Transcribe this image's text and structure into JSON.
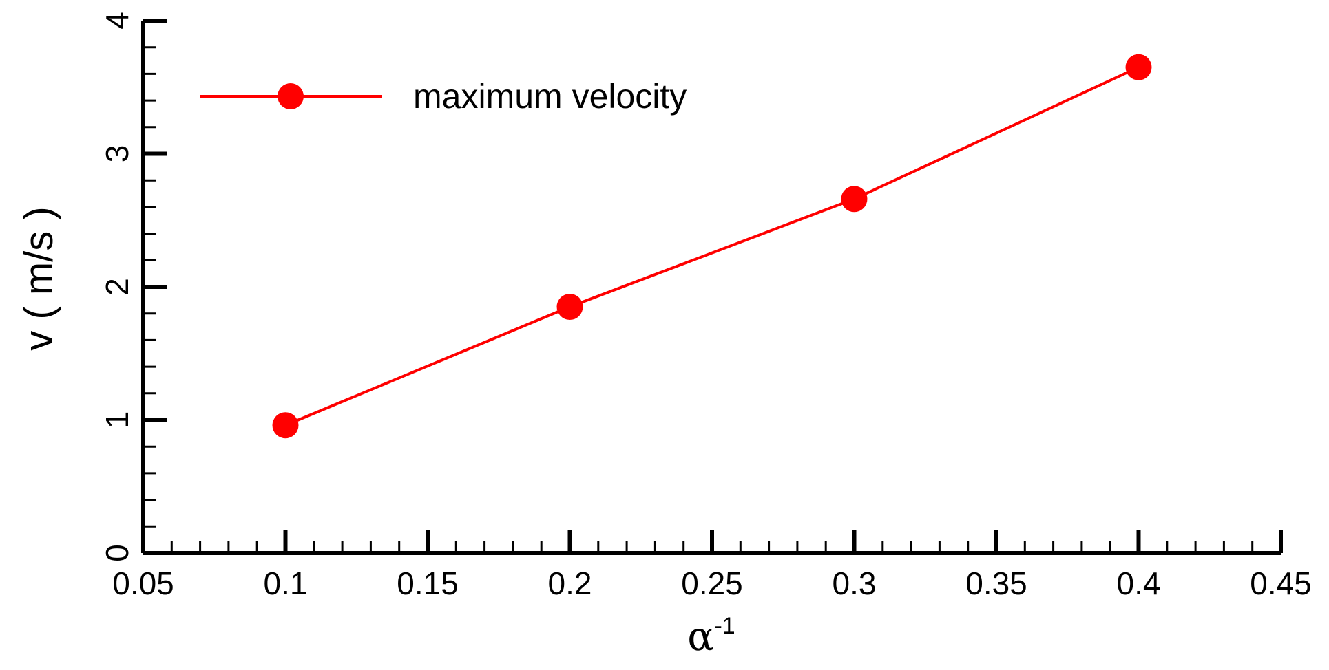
{
  "chart_data": {
    "type": "line",
    "xlabel": "α",
    "xlabel_superscript": "-1",
    "ylabel": "v ( m/s )",
    "xlim": [
      0.05,
      0.45
    ],
    "ylim": [
      0,
      4
    ],
    "x_ticks": [
      "0.05",
      "0.1",
      "0.15",
      "0.2",
      "0.25",
      "0.3",
      "0.35",
      "0.4",
      "0.45"
    ],
    "y_ticks": [
      "0",
      "1",
      "2",
      "3",
      "4"
    ],
    "grid": false,
    "legend_position": "top-left",
    "series": [
      {
        "name": "maximum velocity",
        "color": "#ff0000",
        "marker": "circle",
        "x": [
          0.1,
          0.2,
          0.3,
          0.4
        ],
        "y": [
          0.96,
          1.85,
          2.66,
          3.65
        ]
      }
    ]
  }
}
